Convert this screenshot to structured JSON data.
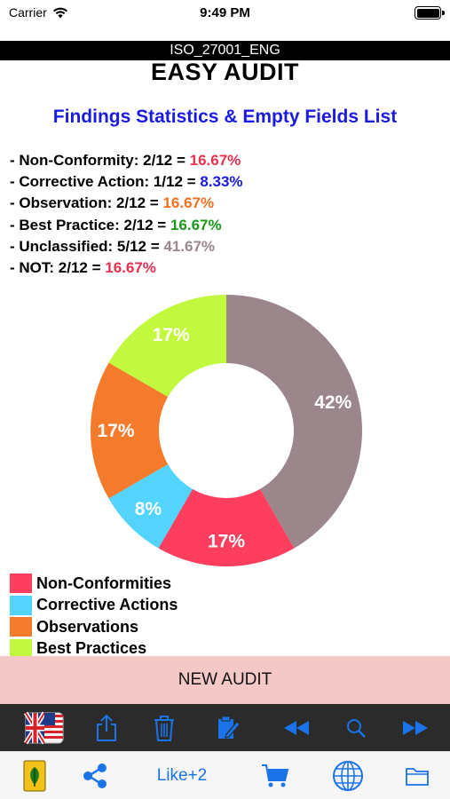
{
  "status_bar": {
    "carrier": "Carrier",
    "time": "9:49 PM"
  },
  "header": {
    "document_name": "ISO_27001_ENG",
    "app_title": "EASY AUDIT"
  },
  "section_title": "Findings Statistics & Empty Fields List",
  "stats": [
    {
      "label": "- Non-Conformity: 2/12 = ",
      "value": "16.67%",
      "color": "#e8304f"
    },
    {
      "label": "- Corrective Action: 1/12 = ",
      "value": "8.33%",
      "color": "#1a1ae0"
    },
    {
      "label": "- Observation: 2/12 = ",
      "value": "16.67%",
      "color": "#f07020"
    },
    {
      "label": "- Best Practice: 2/12 = ",
      "value": "16.67%",
      "color": "#1a9a1a"
    },
    {
      "label": "- Unclassified: 5/12 = ",
      "value": "41.67%",
      "color": "#9a8890"
    },
    {
      "label": "- NOT: 2/12 = ",
      "value": "16.67%",
      "color": "#e8304f"
    }
  ],
  "chart_data": {
    "type": "pie",
    "donut": true,
    "slices": [
      {
        "name": "Unclassified",
        "value": 5,
        "label": "42%",
        "color": "#9b868c"
      },
      {
        "name": "Non-Conformities",
        "value": 2,
        "label": "17%",
        "color": "#fe3e5e"
      },
      {
        "name": "Corrective Actions",
        "value": 1,
        "label": "8%",
        "color": "#52d4ff"
      },
      {
        "name": "Observations",
        "value": 2,
        "label": "17%",
        "color": "#f47a2c"
      },
      {
        "name": "Best Practices",
        "value": 2,
        "label": "17%",
        "color": "#c2f83e"
      }
    ]
  },
  "legend": [
    {
      "label": "Non-Conformities",
      "color": "#fe3e5e"
    },
    {
      "label": "Corrective Actions",
      "color": "#52d4ff"
    },
    {
      "label": "Observations",
      "color": "#f47a2c"
    },
    {
      "label": "Best Practices",
      "color": "#c2f83e"
    }
  ],
  "new_audit_label": "NEW AUDIT",
  "toolbar_top_icons": [
    "flag-uk-us-icon",
    "share-export-icon",
    "trash-icon",
    "edit-note-icon",
    "rewind-icon",
    "search-icon",
    "fast-forward-icon"
  ],
  "toolbar_bottom": {
    "like_label": "Like+2",
    "icons": [
      "app-logo-icon",
      "share-icon",
      "cart-icon",
      "globe-icon",
      "folder-icon"
    ]
  },
  "colors": {
    "accent_blue": "#1a73e8",
    "title_blue": "#1a1ae0",
    "button_pink": "#f5c8c8"
  }
}
